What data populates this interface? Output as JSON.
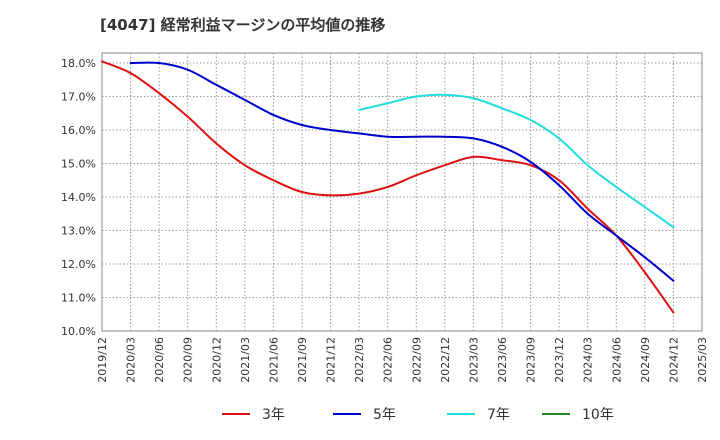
{
  "chart_data": {
    "type": "line",
    "title": "[4047]  経常利益マージンの平均値の推移",
    "xlabel": "",
    "ylabel": "",
    "x": [
      "2019/12",
      "2020/03",
      "2020/06",
      "2020/09",
      "2020/12",
      "2021/03",
      "2021/06",
      "2021/09",
      "2021/12",
      "2022/03",
      "2022/06",
      "2022/09",
      "2022/12",
      "2023/03",
      "2023/06",
      "2023/09",
      "2023/12",
      "2024/03",
      "2024/06",
      "2024/09",
      "2024/12",
      "2025/03"
    ],
    "y_ticks": [
      "10.0%",
      "11.0%",
      "12.0%",
      "13.0%",
      "14.0%",
      "15.0%",
      "16.0%",
      "17.0%",
      "18.0%"
    ],
    "ylim": [
      10.0,
      18.3
    ],
    "grid": true,
    "legend_position": "bottom",
    "series": [
      {
        "name": "3年",
        "color": "#dd1111",
        "values": [
          18.05,
          17.7,
          17.1,
          16.4,
          15.6,
          14.95,
          14.5,
          14.15,
          14.05,
          14.1,
          14.3,
          14.65,
          14.95,
          15.2,
          15.1,
          14.95,
          14.5,
          13.65,
          12.85,
          11.75,
          10.55,
          null
        ]
      },
      {
        "name": "5年",
        "color": "#0000cc",
        "values": [
          null,
          18.0,
          18.0,
          17.8,
          17.35,
          16.9,
          16.45,
          16.15,
          16.0,
          15.9,
          15.8,
          15.8,
          15.8,
          15.75,
          15.5,
          15.05,
          14.35,
          13.5,
          12.85,
          12.2,
          11.5,
          null
        ]
      },
      {
        "name": "7年",
        "color": "#22dddd",
        "values": [
          null,
          null,
          null,
          null,
          null,
          null,
          null,
          null,
          null,
          16.6,
          16.8,
          17.0,
          17.05,
          16.95,
          16.65,
          16.3,
          15.75,
          14.95,
          14.3,
          13.7,
          13.1,
          null
        ]
      },
      {
        "name": "10年",
        "color": "#228822",
        "values": [
          null,
          null,
          null,
          null,
          null,
          null,
          null,
          null,
          null,
          null,
          null,
          null,
          null,
          null,
          null,
          null,
          null,
          null,
          null,
          null,
          null,
          null
        ]
      }
    ]
  }
}
